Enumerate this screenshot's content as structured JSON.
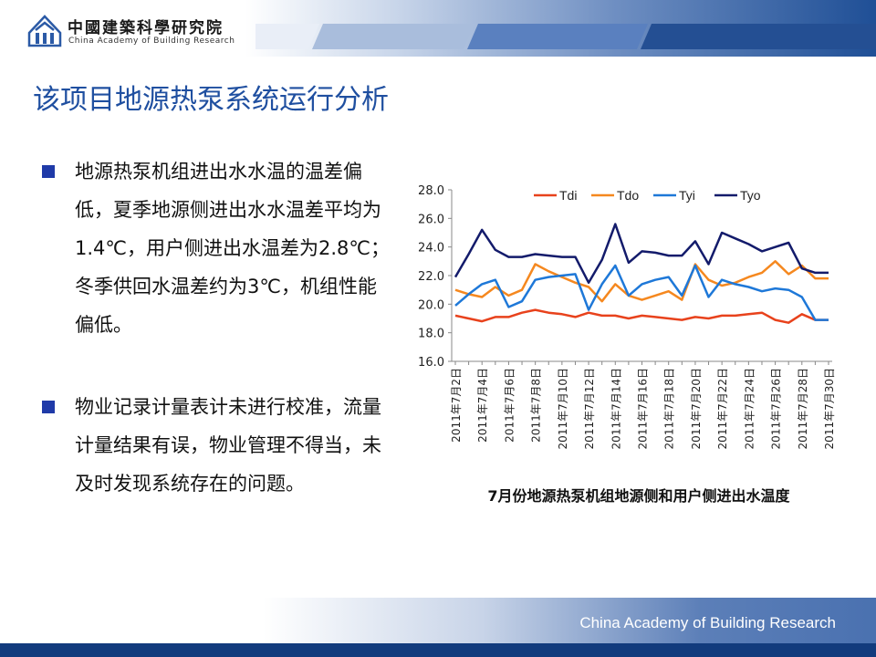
{
  "header": {
    "org_name_cn": "中國建築科學研究院",
    "org_name_en": "China Academy of Building Research"
  },
  "title": "该项目地源热泵系统运行分析",
  "bullets": [
    {
      "text": "地源热泵机组进出水水温的温差偏低，夏季地源侧进出水水温差平均为1.4℃，用户侧进出水温差为2.8℃；冬季供回水温差约为3℃，机组性能偏低。"
    },
    {
      "text": "物业记录计量表计未进行校准，流量计量结果有误，物业管理不得当，未及时发现系统存在的问题。"
    }
  ],
  "chart_data": {
    "type": "line",
    "title": "7月份地源热泵机组地源侧和用户侧进出水温度",
    "xlabel": "",
    "ylabel": "",
    "ylim": [
      16.0,
      28.0
    ],
    "yticks": [
      "16.0",
      "18.0",
      "20.0",
      "22.0",
      "24.0",
      "26.0",
      "28.0"
    ],
    "x": [
      "2011年7月2日",
      "2011年7月3日",
      "2011年7月4日",
      "2011年7月5日",
      "2011年7月6日",
      "2011年7月7日",
      "2011年7月8日",
      "2011年7月9日",
      "2011年7月10日",
      "2011年7月11日",
      "2011年7月12日",
      "2011年7月13日",
      "2011年7月14日",
      "2011年7月15日",
      "2011年7月16日",
      "2011年7月17日",
      "2011年7月18日",
      "2011年7月19日",
      "2011年7月20日",
      "2011年7月21日",
      "2011年7月22日",
      "2011年7月23日",
      "2011年7月24日",
      "2011年7月25日",
      "2011年7月26日",
      "2011年7月27日",
      "2011年7月28日",
      "2011年7月29日",
      "2011年7月30日"
    ],
    "xtick_labels": [
      "2011年7月2日",
      "2011年7月4日",
      "2011年7月6日",
      "2011年7月8日",
      "2011年7月10日",
      "2011年7月12日",
      "2011年7月14日",
      "2011年7月16日",
      "2011年7月18日",
      "2011年7月20日",
      "2011年7月22日",
      "2011年7月24日",
      "2011年7月26日",
      "2011年7月28日",
      "2011年7月30日"
    ],
    "legend_position": "top",
    "grid": false,
    "series": [
      {
        "name": "Tdi",
        "color": "#e8421c",
        "values": [
          19.2,
          19.0,
          18.8,
          19.1,
          19.1,
          19.4,
          19.6,
          19.4,
          19.3,
          19.1,
          19.4,
          19.2,
          19.2,
          19.0,
          19.2,
          19.1,
          19.0,
          18.9,
          19.1,
          19.0,
          19.2,
          19.2,
          19.3,
          19.4,
          18.9,
          18.7,
          19.3,
          18.9,
          18.9
        ]
      },
      {
        "name": "Tdo",
        "color": "#f5881f",
        "values": [
          21.0,
          20.7,
          20.5,
          21.2,
          20.6,
          21.0,
          22.8,
          22.3,
          21.9,
          21.5,
          21.2,
          20.2,
          21.4,
          20.6,
          20.3,
          20.6,
          20.9,
          20.3,
          22.8,
          21.7,
          21.3,
          21.5,
          21.9,
          22.2,
          23.0,
          22.1,
          22.7,
          21.8,
          21.8
        ]
      },
      {
        "name": "Tyi",
        "color": "#1e78d8",
        "values": [
          19.9,
          20.7,
          21.4,
          21.7,
          19.8,
          20.2,
          21.7,
          21.9,
          22.0,
          22.1,
          19.6,
          21.4,
          22.7,
          20.6,
          21.4,
          21.7,
          21.9,
          20.6,
          22.7,
          20.5,
          21.7,
          21.4,
          21.2,
          20.9,
          21.1,
          21.0,
          20.5,
          18.9,
          18.9
        ]
      },
      {
        "name": "Tyo",
        "color": "#131b6b",
        "values": [
          21.9,
          23.5,
          25.2,
          23.8,
          23.3,
          23.3,
          23.5,
          23.4,
          23.3,
          23.3,
          21.5,
          23.1,
          25.6,
          22.9,
          23.7,
          23.6,
          23.4,
          23.4,
          24.4,
          22.8,
          25.0,
          24.6,
          24.2,
          23.7,
          24.0,
          24.3,
          22.5,
          22.2,
          22.2
        ]
      }
    ]
  },
  "footer": {
    "text": "China Academy of Building Research"
  }
}
